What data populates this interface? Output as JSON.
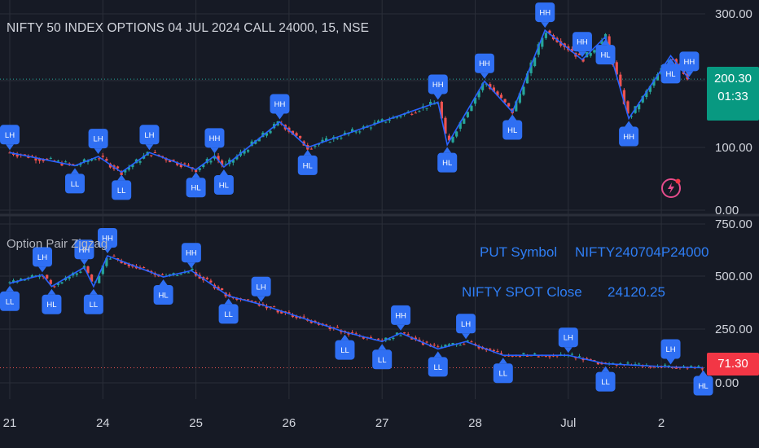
{
  "header": {
    "title": "NIFTY 50 INDEX OPTIONS 04 JUL 2024 CALL 24000, 15, NSE"
  },
  "lower_pane": {
    "title": "Option Pair Zigzag"
  },
  "info_table": {
    "row1_label": "PUT Symbol",
    "row1_value": "NIFTY240704P24000",
    "row2_label": "NIFTY SPOT Close",
    "row2_value": "24120.25"
  },
  "price_tags": {
    "upper_price": "200.30",
    "upper_countdown": "01:33",
    "lower_price": "71.30"
  },
  "colors": {
    "background": "#161a25",
    "grid": "#2a2e39",
    "up": "#26a69a",
    "down": "#ef5350",
    "zigzag": "#2962ff",
    "marker": "#2f6ff3",
    "upper_tag": "#089981",
    "lower_tag": "#f23645",
    "table_text": "#2f7ef5"
  },
  "icons": {
    "alert": "lightning-alert-icon"
  },
  "chart_data": [
    {
      "type": "candlestick",
      "name": "upper-pane",
      "title": "NIFTY 50 INDEX OPTIONS 04 JUL 2024 CALL 24000, 15, NSE",
      "y_ticks": [
        "300.00",
        "200.00",
        "100.00",
        "0.00"
      ],
      "ylim": [
        0,
        300
      ],
      "x_ticks": [
        "21",
        "24",
        "25",
        "26",
        "27",
        "28",
        "Jul",
        "2"
      ],
      "last_price": 200.3,
      "zigzag_path": [
        {
          "t": 0.0,
          "v": 88
        },
        {
          "t": 0.7,
          "v": 68
        },
        {
          "t": 0.95,
          "v": 82
        },
        {
          "t": 1.2,
          "v": 58
        },
        {
          "t": 1.5,
          "v": 88
        },
        {
          "t": 2.0,
          "v": 62
        },
        {
          "t": 2.2,
          "v": 83
        },
        {
          "t": 2.3,
          "v": 66
        },
        {
          "t": 2.9,
          "v": 135
        },
        {
          "t": 3.2,
          "v": 96
        },
        {
          "t": 4.6,
          "v": 165
        },
        {
          "t": 4.7,
          "v": 100
        },
        {
          "t": 5.1,
          "v": 197
        },
        {
          "t": 5.4,
          "v": 150
        },
        {
          "t": 5.75,
          "v": 275
        },
        {
          "t": 6.15,
          "v": 230
        },
        {
          "t": 6.4,
          "v": 265
        },
        {
          "t": 6.65,
          "v": 140
        },
        {
          "t": 7.1,
          "v": 236
        },
        {
          "t": 7.3,
          "v": 200
        }
      ],
      "markers": [
        {
          "label": "LH",
          "t": 0.0,
          "v": 88,
          "pos": "above"
        },
        {
          "label": "LL",
          "t": 0.7,
          "v": 68,
          "pos": "below"
        },
        {
          "label": "LH",
          "t": 0.95,
          "v": 82,
          "pos": "above"
        },
        {
          "label": "LL",
          "t": 1.2,
          "v": 58,
          "pos": "below"
        },
        {
          "label": "LH",
          "t": 1.5,
          "v": 88,
          "pos": "above"
        },
        {
          "label": "HL",
          "t": 2.0,
          "v": 62,
          "pos": "below"
        },
        {
          "label": "HH",
          "t": 2.2,
          "v": 83,
          "pos": "above"
        },
        {
          "label": "HL",
          "t": 2.3,
          "v": 66,
          "pos": "below"
        },
        {
          "label": "HH",
          "t": 2.9,
          "v": 135,
          "pos": "above"
        },
        {
          "label": "HL",
          "t": 3.2,
          "v": 96,
          "pos": "below"
        },
        {
          "label": "HH",
          "t": 4.6,
          "v": 165,
          "pos": "above"
        },
        {
          "label": "HL",
          "t": 4.7,
          "v": 100,
          "pos": "below"
        },
        {
          "label": "HH",
          "t": 5.1,
          "v": 197,
          "pos": "above"
        },
        {
          "label": "HL",
          "t": 5.4,
          "v": 150,
          "pos": "below"
        },
        {
          "label": "HH",
          "t": 5.75,
          "v": 275,
          "pos": "above"
        },
        {
          "label": "HH",
          "t": 6.15,
          "v": 230,
          "pos": "above"
        },
        {
          "label": "HL",
          "t": 6.4,
          "v": 265,
          "pos": "below"
        },
        {
          "label": "HH",
          "t": 6.65,
          "v": 140,
          "pos": "below"
        },
        {
          "label": "HL",
          "t": 7.1,
          "v": 236,
          "pos": "below"
        },
        {
          "label": "HH",
          "t": 7.3,
          "v": 200,
          "pos": "above"
        }
      ]
    },
    {
      "type": "candlestick",
      "name": "lower-pane",
      "title": "Option Pair Zigzag",
      "y_ticks": [
        "750.00",
        "500.00",
        "250.00",
        "0.00"
      ],
      "ylim": [
        0,
        750
      ],
      "last_price": 71.3,
      "zigzag_path": [
        {
          "t": 0.0,
          "v": 470
        },
        {
          "t": 0.35,
          "v": 510
        },
        {
          "t": 0.45,
          "v": 455
        },
        {
          "t": 0.8,
          "v": 545
        },
        {
          "t": 0.9,
          "v": 455
        },
        {
          "t": 1.05,
          "v": 600
        },
        {
          "t": 1.65,
          "v": 500
        },
        {
          "t": 1.95,
          "v": 530
        },
        {
          "t": 2.35,
          "v": 410
        },
        {
          "t": 2.7,
          "v": 370
        },
        {
          "t": 3.6,
          "v": 240
        },
        {
          "t": 4.0,
          "v": 195
        },
        {
          "t": 4.2,
          "v": 235
        },
        {
          "t": 4.6,
          "v": 160
        },
        {
          "t": 4.9,
          "v": 195
        },
        {
          "t": 5.3,
          "v": 130
        },
        {
          "t": 6.0,
          "v": 130
        },
        {
          "t": 6.4,
          "v": 90
        },
        {
          "t": 7.1,
          "v": 75
        },
        {
          "t": 7.45,
          "v": 71
        }
      ],
      "markers": [
        {
          "label": "LL",
          "t": 0.0,
          "v": 470,
          "pos": "below"
        },
        {
          "label": "LH",
          "t": 0.35,
          "v": 510,
          "pos": "above"
        },
        {
          "label": "HL",
          "t": 0.45,
          "v": 455,
          "pos": "below"
        },
        {
          "label": "HH",
          "t": 0.8,
          "v": 545,
          "pos": "above"
        },
        {
          "label": "LL",
          "t": 0.9,
          "v": 455,
          "pos": "below"
        },
        {
          "label": "HH",
          "t": 1.05,
          "v": 600,
          "pos": "above"
        },
        {
          "label": "HL",
          "t": 1.65,
          "v": 500,
          "pos": "below"
        },
        {
          "label": "HH",
          "t": 1.95,
          "v": 530,
          "pos": "above"
        },
        {
          "label": "LL",
          "t": 2.35,
          "v": 410,
          "pos": "below"
        },
        {
          "label": "LH",
          "t": 2.7,
          "v": 370,
          "pos": "above"
        },
        {
          "label": "LL",
          "t": 3.6,
          "v": 240,
          "pos": "below"
        },
        {
          "label": "LL",
          "t": 4.0,
          "v": 195,
          "pos": "below"
        },
        {
          "label": "HH",
          "t": 4.2,
          "v": 235,
          "pos": "above"
        },
        {
          "label": "LL",
          "t": 4.6,
          "v": 160,
          "pos": "below"
        },
        {
          "label": "LH",
          "t": 4.9,
          "v": 195,
          "pos": "above"
        },
        {
          "label": "LL",
          "t": 5.3,
          "v": 130,
          "pos": "below"
        },
        {
          "label": "LH",
          "t": 6.0,
          "v": 130,
          "pos": "above"
        },
        {
          "label": "LL",
          "t": 6.4,
          "v": 90,
          "pos": "below"
        },
        {
          "label": "LH",
          "t": 7.1,
          "v": 75,
          "pos": "above"
        },
        {
          "label": "HL",
          "t": 7.45,
          "v": 71,
          "pos": "below"
        }
      ]
    }
  ]
}
